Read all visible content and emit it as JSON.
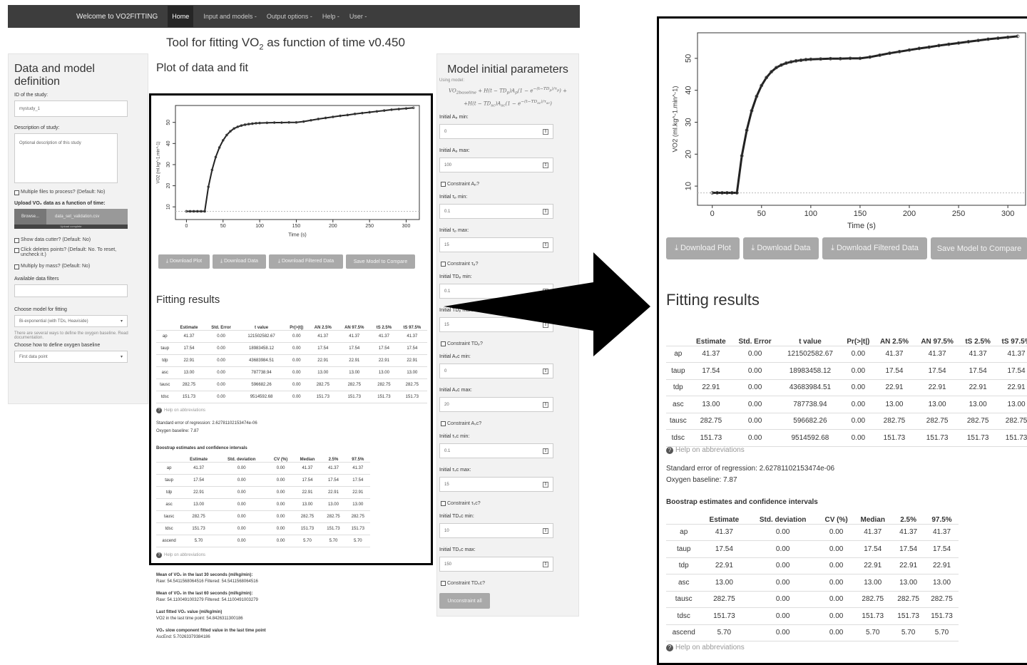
{
  "navbar": {
    "brand": "Welcome to VO2FITTING",
    "items": [
      "Home",
      "Input and models -",
      "Output options -",
      "Help -",
      "User -"
    ]
  },
  "app_title_html_parts": {
    "pre": "Tool for fitting VO",
    "sub": "2",
    "post": " as function of time v0.450"
  },
  "left_panel": {
    "title": "Data and model definition",
    "id_label": "ID of the study:",
    "id_value": "mystudy_1",
    "desc_label": "Description of study:",
    "desc_placeholder": "Optional description of this study",
    "multiple_files": "Multiple files to process? (Default: No)",
    "upload_label": "Upload VO₂ data as a function of time:",
    "browse": "Browse...",
    "file_name": "data_set_validation.csv",
    "upload_status": "Upload complete",
    "show_cutter": "Show data cutter? (Default: No)",
    "click_deletes": "Click deletes points? (Default: No. To reset, uncheck it.)",
    "multiply_mass": "Multiply by mass? (Default: No)",
    "filters_label": "Available data filters",
    "model_label": "Choose model for fitting",
    "model_value": "Bi-exponential (with TDs, Heaviside)",
    "ways_note": "There are several ways to define the oxygen baseline. Read documentation.",
    "baseline_label": "Choose how to define oxygen baseline",
    "baseline_value": "First data point"
  },
  "center": {
    "plot_title": "Plot of data and fit",
    "fitting_title": "Fitting results",
    "help_link": "Help on abbreviations",
    "std_error": "Standard error of regression: 2.62781102153474e-06",
    "oxygen_baseline": "Oxygen baseline: 7.87",
    "bootstrap_title": "Boostrap estimates and confidence intervals",
    "mean30_title": "Mean of VO₂ in the last 30 seconds (ml/kg/min):",
    "mean30_value": "Raw: 54.5411568064516 Filtered: 54.5411568064516",
    "mean60_title": "Mean of VO₂ in the last 60 seconds (ml/kg/min):",
    "mean60_value": "Raw: 54.1100491003279 Filtered: 54.1100491003279",
    "last_title": "Last fitted VO₂ value (ml/kg/min)",
    "last_value": "VO2 in the last time point: 54.8426311300186",
    "slow_title": "VO₂ slow component fitted value in the last time point",
    "slow_value": "AscEnd: 5.70263379384186"
  },
  "buttons": {
    "download_plot": "⤓ Download Plot",
    "download_data": "⤓ Download Data",
    "download_filtered": "⤓ Download Filtered Data",
    "save_model": "Save Model to Compare",
    "unconstrain": "Unconstraint all"
  },
  "chart_data": {
    "type": "scatter",
    "xlabel": "Time (s)",
    "ylabel": "VO2 (ml.kg^-1.min^-1)",
    "xticks": [
      0,
      50,
      100,
      150,
      200,
      250,
      300
    ],
    "yticks": [
      10,
      20,
      30,
      40,
      50
    ],
    "xlim": [
      -15,
      318
    ],
    "ylim": [
      4,
      58
    ],
    "baseline": 7.87,
    "x": [
      0,
      5,
      10,
      15,
      20,
      25,
      30,
      35,
      40,
      45,
      50,
      55,
      60,
      65,
      70,
      75,
      80,
      85,
      90,
      95,
      100,
      110,
      120,
      130,
      140,
      150,
      160,
      170,
      180,
      190,
      200,
      210,
      220,
      230,
      240,
      250,
      260,
      270,
      280,
      290,
      300,
      310
    ],
    "y": [
      7.9,
      7.9,
      7.9,
      7.9,
      7.9,
      7.9,
      19.5,
      27.5,
      33.6,
      38.1,
      41.5,
      44.0,
      45.8,
      47.1,
      47.9,
      48.5,
      48.9,
      49.2,
      49.4,
      49.6,
      49.7,
      49.8,
      49.9,
      49.9,
      50.0,
      50.0,
      50.4,
      51.0,
      51.6,
      52.1,
      52.6,
      53.1,
      53.5,
      54.0,
      54.4,
      54.8,
      55.2,
      55.6,
      56.0,
      56.3,
      56.6,
      56.9
    ]
  },
  "fitting_table": {
    "headers": [
      "",
      "Estimate",
      "Std. Error",
      "t value",
      "Pr(>|t|)",
      "AN 2.5%",
      "AN 97.5%",
      "tS 2.5%",
      "tS 97.5%"
    ],
    "rows": [
      [
        "ap",
        "41.37",
        "0.00",
        "121502582.67",
        "0.00",
        "41.37",
        "41.37",
        "41.37",
        "41.37"
      ],
      [
        "taup",
        "17.54",
        "0.00",
        "18983458.12",
        "0.00",
        "17.54",
        "17.54",
        "17.54",
        "17.54"
      ],
      [
        "tdp",
        "22.91",
        "0.00",
        "43683984.51",
        "0.00",
        "22.91",
        "22.91",
        "22.91",
        "22.91"
      ],
      [
        "asc",
        "13.00",
        "0.00",
        "787738.94",
        "0.00",
        "13.00",
        "13.00",
        "13.00",
        "13.00"
      ],
      [
        "tausc",
        "282.75",
        "0.00",
        "596682.26",
        "0.00",
        "282.75",
        "282.75",
        "282.75",
        "282.75"
      ],
      [
        "tdsc",
        "151.73",
        "0.00",
        "9514592.68",
        "0.00",
        "151.73",
        "151.73",
        "151.73",
        "151.73"
      ]
    ]
  },
  "bootstrap_table": {
    "headers": [
      "",
      "Estimate",
      "Std. deviation",
      "CV (%)",
      "Median",
      "2.5%",
      "97.5%"
    ],
    "rows": [
      [
        "ap",
        "41.37",
        "0.00",
        "0.00",
        "41.37",
        "41.37",
        "41.37"
      ],
      [
        "taup",
        "17.54",
        "0.00",
        "0.00",
        "17.54",
        "17.54",
        "17.54"
      ],
      [
        "tdp",
        "22.91",
        "0.00",
        "0.00",
        "22.91",
        "22.91",
        "22.91"
      ],
      [
        "asc",
        "13.00",
        "0.00",
        "0.00",
        "13.00",
        "13.00",
        "13.00"
      ],
      [
        "tausc",
        "282.75",
        "0.00",
        "0.00",
        "282.75",
        "282.75",
        "282.75"
      ],
      [
        "tdsc",
        "151.73",
        "0.00",
        "0.00",
        "151.73",
        "151.73",
        "151.73"
      ],
      [
        "ascend",
        "5.70",
        "0.00",
        "0.00",
        "5.70",
        "5.70",
        "5.70"
      ]
    ]
  },
  "right_panel": {
    "title": "Model initial parameters",
    "using_model": "Using model:",
    "params": [
      {
        "label": "Initial Aₚ min:",
        "value": "0"
      },
      {
        "label": "Initial Aₚ max:",
        "value": "100"
      },
      {
        "check": "Constraint Aₚ?"
      },
      {
        "label": "Initial τₚ min:",
        "value": "0.1"
      },
      {
        "label": "Initial τₚ max:",
        "value": "15"
      },
      {
        "check": "Constraint τₚ?"
      },
      {
        "label": "Initial TDₚ min:",
        "value": "0.1"
      },
      {
        "label": "Initial TDₚ max:",
        "value": "15"
      },
      {
        "check": "Constraint TDₚ?"
      },
      {
        "label": "Initial Aₛc min:",
        "value": "0"
      },
      {
        "label": "Initial Aₛc max:",
        "value": "20"
      },
      {
        "check": "Constraint Aₛc?"
      },
      {
        "label": "Initial τₛc min:",
        "value": "0.1"
      },
      {
        "label": "Initial τₛc max:",
        "value": "15"
      },
      {
        "check": "Constraint τₛc?"
      },
      {
        "label": "Initial TDₛc min:",
        "value": "10"
      },
      {
        "label": "Initial TDₛc max:",
        "value": "150"
      },
      {
        "check": "Constraint TDₛc?"
      }
    ]
  },
  "colors": {
    "navbar": "#3d3d3d",
    "panel": "#f2f2f2",
    "button": "#a9a9a9",
    "frame": "#000000"
  }
}
